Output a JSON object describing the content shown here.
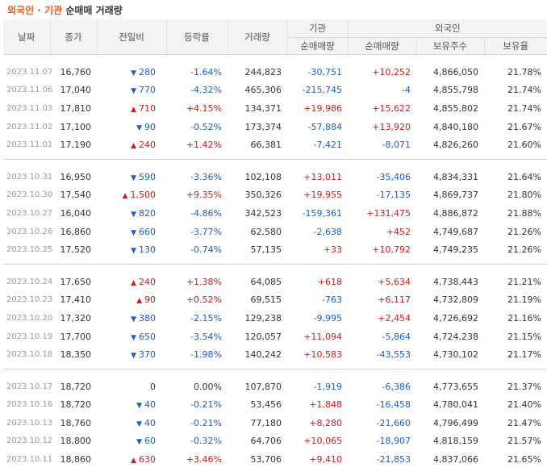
{
  "title": {
    "part1": "외국인",
    "sep": " · ",
    "part2": "기관",
    "part3": "순매매 거래량"
  },
  "headers": {
    "date": "날짜",
    "close": "종가",
    "change": "전일비",
    "rate": "등락률",
    "volume": "거래량",
    "inst_group": "기관",
    "inst_net": "순매매량",
    "foreign_group": "외국인",
    "foreign_net": "순매매량",
    "holdings": "보유주수",
    "ratio": "보유율"
  },
  "colors": {
    "up": "#d11a1a",
    "down": "#1c5dd0",
    "accent": "#e8561a"
  },
  "rows": [
    {
      "date": "2023.11.07",
      "close": "16,760",
      "dir": "down",
      "change": "280",
      "rate": "-1.64%",
      "volume": "244,823",
      "inst": "-30,751",
      "foreign": "+10,252",
      "holdings": "4,866,050",
      "ratio": "21.78%"
    },
    {
      "date": "2023.11.06",
      "close": "17,040",
      "dir": "down",
      "change": "770",
      "rate": "-4.32%",
      "volume": "465,306",
      "inst": "-215,745",
      "foreign": "-4",
      "holdings": "4,855,798",
      "ratio": "21.74%"
    },
    {
      "date": "2023.11.03",
      "close": "17,810",
      "dir": "up",
      "change": "710",
      "rate": "+4.15%",
      "volume": "134,371",
      "inst": "+19,986",
      "foreign": "+15,622",
      "holdings": "4,855,802",
      "ratio": "21.74%"
    },
    {
      "date": "2023.11.02",
      "close": "17,100",
      "dir": "down",
      "change": "90",
      "rate": "-0.52%",
      "volume": "173,374",
      "inst": "-57,884",
      "foreign": "+13,920",
      "holdings": "4,840,180",
      "ratio": "21.67%"
    },
    {
      "date": "2023.11.01",
      "close": "17,190",
      "dir": "up",
      "change": "240",
      "rate": "+1.42%",
      "volume": "66,381",
      "inst": "-7,421",
      "foreign": "-8,071",
      "holdings": "4,826,260",
      "ratio": "21.60%"
    },
    {
      "date": "2023.10.31",
      "close": "16,950",
      "dir": "down",
      "change": "590",
      "rate": "-3.36%",
      "volume": "102,108",
      "inst": "+13,011",
      "foreign": "-35,406",
      "holdings": "4,834,331",
      "ratio": "21.64%"
    },
    {
      "date": "2023.10.30",
      "close": "17,540",
      "dir": "up",
      "change": "1,500",
      "rate": "+9.35%",
      "volume": "350,326",
      "inst": "+19,955",
      "foreign": "-17,135",
      "holdings": "4,869,737",
      "ratio": "21.80%"
    },
    {
      "date": "2023.10.27",
      "close": "16,040",
      "dir": "down",
      "change": "820",
      "rate": "-4.86%",
      "volume": "342,523",
      "inst": "-159,361",
      "foreign": "+131,475",
      "holdings": "4,886,872",
      "ratio": "21.88%"
    },
    {
      "date": "2023.10.26",
      "close": "16,860",
      "dir": "down",
      "change": "660",
      "rate": "-3.77%",
      "volume": "62,580",
      "inst": "-2,638",
      "foreign": "+452",
      "holdings": "4,749,687",
      "ratio": "21.26%"
    },
    {
      "date": "2023.10.25",
      "close": "17,520",
      "dir": "down",
      "change": "130",
      "rate": "-0.74%",
      "volume": "57,135",
      "inst": "+33",
      "foreign": "+10,792",
      "holdings": "4,749,235",
      "ratio": "21.26%"
    },
    {
      "date": "2023.10.24",
      "close": "17,650",
      "dir": "up",
      "change": "240",
      "rate": "+1.38%",
      "volume": "64,085",
      "inst": "+618",
      "foreign": "+5,634",
      "holdings": "4,738,443",
      "ratio": "21.21%"
    },
    {
      "date": "2023.10.23",
      "close": "17,410",
      "dir": "up",
      "change": "90",
      "rate": "+0.52%",
      "volume": "69,515",
      "inst": "-763",
      "foreign": "+6,117",
      "holdings": "4,732,809",
      "ratio": "21.19%"
    },
    {
      "date": "2023.10.20",
      "close": "17,320",
      "dir": "down",
      "change": "380",
      "rate": "-2.15%",
      "volume": "129,238",
      "inst": "-9,995",
      "foreign": "+2,454",
      "holdings": "4,726,692",
      "ratio": "21.16%"
    },
    {
      "date": "2023.10.19",
      "close": "17,700",
      "dir": "down",
      "change": "650",
      "rate": "-3.54%",
      "volume": "120,057",
      "inst": "+11,094",
      "foreign": "-5,864",
      "holdings": "4,724,238",
      "ratio": "21.15%"
    },
    {
      "date": "2023.10.18",
      "close": "18,350",
      "dir": "down",
      "change": "370",
      "rate": "-1.98%",
      "volume": "140,242",
      "inst": "+10,583",
      "foreign": "-43,553",
      "holdings": "4,730,102",
      "ratio": "21.17%"
    },
    {
      "date": "2023.10.17",
      "close": "18,720",
      "dir": "none",
      "change": "0",
      "rate": "0.00%",
      "volume": "107,870",
      "inst": "-1,919",
      "foreign": "-6,386",
      "holdings": "4,773,655",
      "ratio": "21.37%"
    },
    {
      "date": "2023.10.16",
      "close": "18,720",
      "dir": "down",
      "change": "40",
      "rate": "-0.21%",
      "volume": "53,456",
      "inst": "+1,848",
      "foreign": "-16,458",
      "holdings": "4,780,041",
      "ratio": "21.40%"
    },
    {
      "date": "2023.10.13",
      "close": "18,760",
      "dir": "down",
      "change": "40",
      "rate": "-0.21%",
      "volume": "77,180",
      "inst": "+8,280",
      "foreign": "-21,660",
      "holdings": "4,796,499",
      "ratio": "21.47%"
    },
    {
      "date": "2023.10.12",
      "close": "18,800",
      "dir": "down",
      "change": "60",
      "rate": "-0.32%",
      "volume": "64,706",
      "inst": "+10,065",
      "foreign": "-18,907",
      "holdings": "4,818,159",
      "ratio": "21.57%"
    },
    {
      "date": "2023.10.11",
      "close": "18,860",
      "dir": "up",
      "change": "630",
      "rate": "+3.46%",
      "volume": "53,706",
      "inst": "+9,410",
      "foreign": "-21,853",
      "holdings": "4,837,066",
      "ratio": "21.65%"
    }
  ]
}
